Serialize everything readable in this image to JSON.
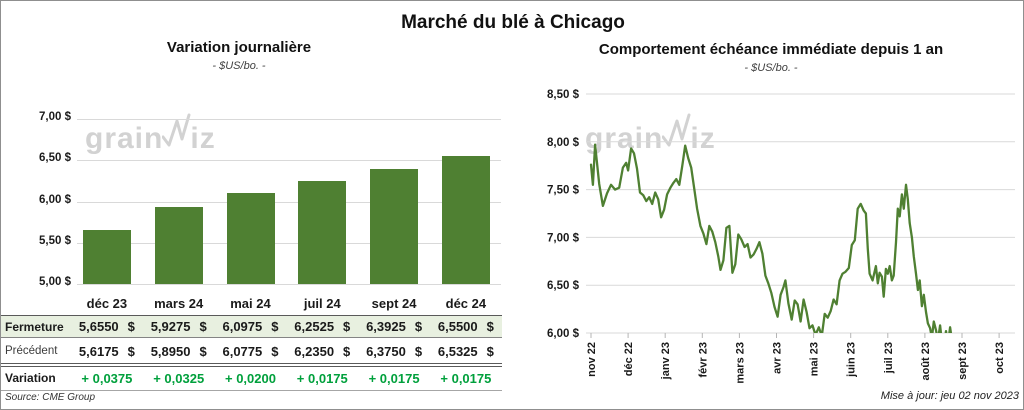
{
  "page": {
    "title": "Marché du blé à Chicago"
  },
  "colors": {
    "green": "#4f8032",
    "row_green_bg": "#e8f0e0",
    "variation_green": "#00a03c",
    "gridline": "#d9d9d9",
    "tick": "#b5b5b5",
    "watermark": "#d2d2d2"
  },
  "watermark": {
    "pre": "grain",
    "post": "iz"
  },
  "left_panel": {
    "title": "Variation journalière",
    "subtitle": "- $US/bo. -",
    "source": "Source: CME Group",
    "table": {
      "columns": [
        "déc 23",
        "mars 24",
        "mai 24",
        "juil 24",
        "sept 24",
        "déc 24"
      ],
      "currency": "$",
      "rows": [
        {
          "label": "Fermeture",
          "values": [
            "5,6550",
            "5,9275",
            "6,0975",
            "6,2525",
            "6,3925",
            "6,5500"
          ],
          "currency": true,
          "highlight": true
        },
        {
          "label": "Précédent",
          "values": [
            "5,6175",
            "5,8950",
            "6,0775",
            "6,2350",
            "6,3750",
            "6,5325"
          ],
          "currency": true,
          "highlight": false
        },
        {
          "label": "Variation",
          "values": [
            "+ 0,0375",
            "+ 0,0325",
            "+ 0,0200",
            "+ 0,0175",
            "+ 0,0175",
            "+ 0,0175"
          ],
          "currency": false,
          "green": true
        }
      ]
    }
  },
  "right_panel": {
    "title": "Comportement échéance immédiate depuis 1 an",
    "subtitle": "- $US/bo. -",
    "updated": "Mise à jour: jeu 02 nov 2023"
  },
  "chart_data": [
    {
      "type": "bar",
      "title": "Variation journalière",
      "unit": "$US/bo.",
      "categories": [
        "déc 23",
        "mars 24",
        "mai 24",
        "juil 24",
        "sept 24",
        "déc 24"
      ],
      "values": [
        5.655,
        5.9275,
        6.0975,
        6.2525,
        6.3925,
        6.55
      ],
      "ylim": [
        5.0,
        7.0
      ],
      "yticks": [
        {
          "v": 7.0,
          "label": "7,00 $"
        },
        {
          "v": 6.5,
          "label": "6,50 $"
        },
        {
          "v": 6.0,
          "label": "6,00 $"
        },
        {
          "v": 5.5,
          "label": "5,50 $"
        },
        {
          "v": 5.0,
          "label": "5,00 $"
        }
      ],
      "grid": true,
      "legend": false
    },
    {
      "type": "line",
      "title": "Comportement échéance immédiate depuis 1 an",
      "unit": "$US/bo.",
      "x_labels": [
        "nov 22",
        "déc 22",
        "janv 23",
        "févr 23",
        "mars 23",
        "avr 23",
        "mai 23",
        "juin 23",
        "juil 23",
        "août 23",
        "sept 23",
        "oct 23"
      ],
      "ylim": [
        6.0,
        8.5
      ],
      "yticks": [
        {
          "v": 8.5,
          "label": "8,50 $"
        },
        {
          "v": 8.0,
          "label": "8,00 $"
        },
        {
          "v": 7.5,
          "label": "7,50 $"
        },
        {
          "v": 7.0,
          "label": "7,00 $"
        },
        {
          "v": 6.5,
          "label": "6,50 $"
        },
        {
          "v": 6.0,
          "label": "6,00 $"
        }
      ],
      "grid": true,
      "legend": false,
      "points_note": "x = months since nov 22, y = $US/bo.; values below 6.00 are clipped by axis",
      "points": [
        [
          0.0,
          7.76
        ],
        [
          0.05,
          7.55
        ],
        [
          0.11,
          7.97
        ],
        [
          0.22,
          7.56
        ],
        [
          0.32,
          7.33
        ],
        [
          0.43,
          7.46
        ],
        [
          0.54,
          7.55
        ],
        [
          0.65,
          7.5
        ],
        [
          0.76,
          7.52
        ],
        [
          0.86,
          7.73
        ],
        [
          0.95,
          7.78
        ],
        [
          1.0,
          7.7
        ],
        [
          1.08,
          7.93
        ],
        [
          1.16,
          7.88
        ],
        [
          1.24,
          7.72
        ],
        [
          1.32,
          7.47
        ],
        [
          1.41,
          7.44
        ],
        [
          1.49,
          7.38
        ],
        [
          1.57,
          7.42
        ],
        [
          1.65,
          7.35
        ],
        [
          1.73,
          7.47
        ],
        [
          1.81,
          7.4
        ],
        [
          1.89,
          7.21
        ],
        [
          1.97,
          7.29
        ],
        [
          2.05,
          7.45
        ],
        [
          2.14,
          7.52
        ],
        [
          2.22,
          7.57
        ],
        [
          2.3,
          7.61
        ],
        [
          2.38,
          7.55
        ],
        [
          2.46,
          7.75
        ],
        [
          2.54,
          7.96
        ],
        [
          2.62,
          7.83
        ],
        [
          2.7,
          7.73
        ],
        [
          2.78,
          7.52
        ],
        [
          2.86,
          7.3
        ],
        [
          2.95,
          7.12
        ],
        [
          3.03,
          7.04
        ],
        [
          3.11,
          6.93
        ],
        [
          3.19,
          7.12
        ],
        [
          3.27,
          7.06
        ],
        [
          3.35,
          6.95
        ],
        [
          3.43,
          6.8
        ],
        [
          3.49,
          6.66
        ],
        [
          3.57,
          6.76
        ],
        [
          3.65,
          7.1
        ],
        [
          3.73,
          7.12
        ],
        [
          3.81,
          6.63
        ],
        [
          3.89,
          6.72
        ],
        [
          3.97,
          7.03
        ],
        [
          4.05,
          6.98
        ],
        [
          4.14,
          6.9
        ],
        [
          4.22,
          6.93
        ],
        [
          4.3,
          6.79
        ],
        [
          4.38,
          6.82
        ],
        [
          4.46,
          6.88
        ],
        [
          4.54,
          6.95
        ],
        [
          4.62,
          6.83
        ],
        [
          4.7,
          6.6
        ],
        [
          4.78,
          6.52
        ],
        [
          4.86,
          6.42
        ],
        [
          4.95,
          6.27
        ],
        [
          5.03,
          6.17
        ],
        [
          5.11,
          6.4
        ],
        [
          5.19,
          6.48
        ],
        [
          5.24,
          6.55
        ],
        [
          5.32,
          6.31
        ],
        [
          5.41,
          6.14
        ],
        [
          5.49,
          6.34
        ],
        [
          5.57,
          6.3
        ],
        [
          5.65,
          6.12
        ],
        [
          5.73,
          6.35
        ],
        [
          5.81,
          6.22
        ],
        [
          5.89,
          6.05
        ],
        [
          5.97,
          6.08
        ],
        [
          6.05,
          5.98
        ],
        [
          6.14,
          6.06
        ],
        [
          6.22,
          5.97
        ],
        [
          6.3,
          6.2
        ],
        [
          6.38,
          6.16
        ],
        [
          6.46,
          6.23
        ],
        [
          6.54,
          6.35
        ],
        [
          6.62,
          6.3
        ],
        [
          6.7,
          6.55
        ],
        [
          6.78,
          6.62
        ],
        [
          6.86,
          6.64
        ],
        [
          6.95,
          6.68
        ],
        [
          7.03,
          6.92
        ],
        [
          7.11,
          6.97
        ],
        [
          7.19,
          7.3
        ],
        [
          7.27,
          7.35
        ],
        [
          7.35,
          7.28
        ],
        [
          7.41,
          7.25
        ],
        [
          7.46,
          6.88
        ],
        [
          7.51,
          6.62
        ],
        [
          7.59,
          6.55
        ],
        [
          7.68,
          6.7
        ],
        [
          7.73,
          6.52
        ],
        [
          7.78,
          6.63
        ],
        [
          7.84,
          6.59
        ],
        [
          7.89,
          6.38
        ],
        [
          7.95,
          6.67
        ],
        [
          8.0,
          6.62
        ],
        [
          8.05,
          6.7
        ],
        [
          8.11,
          6.55
        ],
        [
          8.16,
          6.6
        ],
        [
          8.22,
          6.95
        ],
        [
          8.27,
          7.3
        ],
        [
          8.32,
          7.22
        ],
        [
          8.38,
          7.45
        ],
        [
          8.43,
          7.3
        ],
        [
          8.49,
          7.55
        ],
        [
          8.54,
          7.4
        ],
        [
          8.59,
          7.15
        ],
        [
          8.65,
          7.0
        ],
        [
          8.7,
          6.8
        ],
        [
          8.76,
          6.62
        ],
        [
          8.81,
          6.45
        ],
        [
          8.86,
          6.55
        ],
        [
          8.92,
          6.28
        ],
        [
          8.97,
          6.4
        ],
        [
          9.03,
          6.22
        ],
        [
          9.08,
          6.1
        ],
        [
          9.14,
          6.05
        ],
        [
          9.19,
          5.95
        ],
        [
          9.24,
          6.12
        ],
        [
          9.3,
          6.03
        ],
        [
          9.35,
          5.92
        ],
        [
          9.41,
          6.08
        ],
        [
          9.46,
          5.9
        ],
        [
          9.51,
          5.85
        ],
        [
          9.57,
          6.02
        ],
        [
          9.62,
          5.88
        ],
        [
          9.68,
          6.06
        ],
        [
          9.73,
          5.92
        ],
        [
          9.78,
          5.8
        ],
        [
          9.84,
          5.75
        ],
        [
          9.95,
          5.7
        ],
        [
          10.14,
          5.72
        ],
        [
          10.41,
          5.68
        ],
        [
          10.68,
          5.65
        ],
        [
          10.95,
          5.62
        ],
        [
          11.22,
          5.6
        ]
      ]
    }
  ]
}
